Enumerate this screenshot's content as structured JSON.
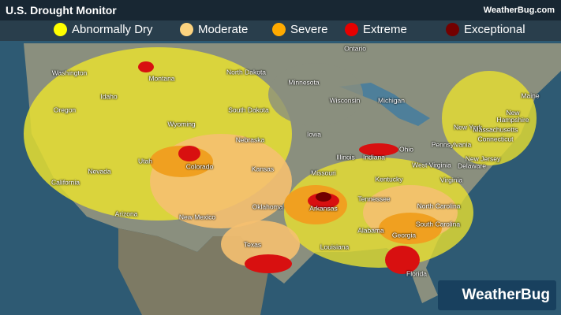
{
  "header": {
    "title": "U.S. Drought Monitor",
    "brand": "WeatherBug.com"
  },
  "legend": [
    {
      "label": "Abnormally Dry",
      "color": "#ffff00"
    },
    {
      "label": "Moderate",
      "color": "#fcd37f"
    },
    {
      "label": "Severe",
      "color": "#ffaa00"
    },
    {
      "label": "Extreme",
      "color": "#e60000"
    },
    {
      "label": "Exceptional",
      "color": "#730000"
    }
  ],
  "map": {
    "labels": [
      "Ontario",
      "North Dakota",
      "Minnesota",
      "Washington",
      "Montana",
      "Idaho",
      "Oregon",
      "Wyoming",
      "South Dakota",
      "Wisconsin",
      "Michigan",
      "Maine",
      "New Hampshire",
      "New York",
      "Massachusetts",
      "Connecticut",
      "Pennsylvania",
      "New Jersey",
      "Delaware",
      "Ohio",
      "Indiana",
      "Illinois",
      "Iowa",
      "Nebraska",
      "Nevada",
      "Utah",
      "Colorado",
      "California",
      "Kansas",
      "Missouri",
      "Kentucky",
      "West Virginia",
      "Virginia",
      "North Carolina",
      "South Carolina",
      "Tennessee",
      "Arkansas",
      "Oklahoma",
      "Arizona",
      "New Mexico",
      "Texas",
      "Louisiana",
      "Alabama",
      "Georgia",
      "Florida"
    ]
  },
  "logo": {
    "text": "WeatherBug"
  }
}
